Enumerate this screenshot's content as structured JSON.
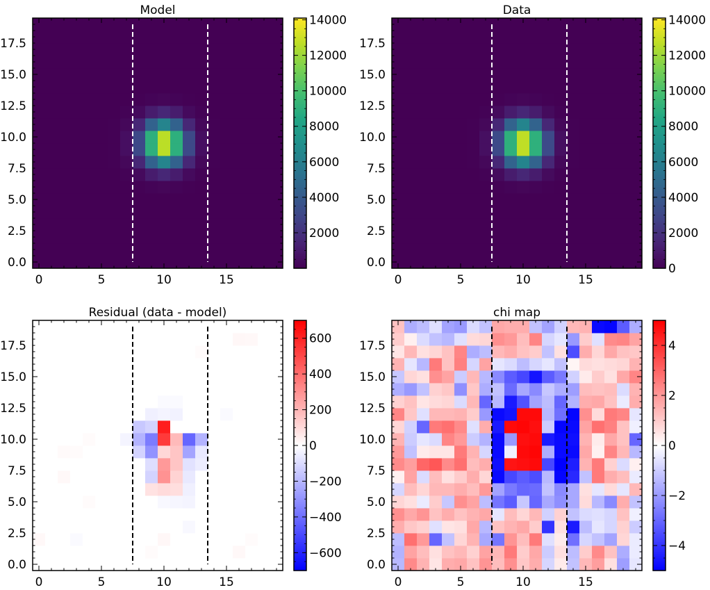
{
  "chart_data": [
    {
      "type": "heatmap",
      "title": "Model",
      "colormap": "viridis",
      "xlim": [
        -0.5,
        19.5
      ],
      "ylim": [
        -0.5,
        19.5
      ],
      "x_ticks": [
        "0",
        "5",
        "10",
        "15"
      ],
      "y_ticks": [
        "0.0",
        "2.5",
        "5.0",
        "7.5",
        "10.0",
        "12.5",
        "15.0",
        "17.5"
      ],
      "colorbar": {
        "range": [
          0,
          14100
        ],
        "ticks": [
          "2000",
          "4000",
          "6000",
          "8000",
          "10000",
          "12000",
          "14000"
        ]
      },
      "vlines": {
        "x": [
          7.5,
          13.5
        ],
        "color": "#ffffff"
      },
      "source": {
        "kind": "gaussian",
        "center_x": 10,
        "center_y": 9.5,
        "sigma_x": 1.2,
        "sigma_y": 1.2,
        "peak": 13800
      }
    },
    {
      "type": "heatmap",
      "title": "Data",
      "colormap": "viridis",
      "xlim": [
        -0.5,
        19.5
      ],
      "ylim": [
        -0.5,
        19.5
      ],
      "x_ticks": [
        "0",
        "5",
        "10",
        "15"
      ],
      "y_ticks": [
        "0.0",
        "2.5",
        "5.0",
        "7.5",
        "10.0",
        "12.5",
        "15.0",
        "17.5"
      ],
      "colorbar": {
        "range": [
          0,
          14100
        ],
        "ticks": [
          "0",
          "2000",
          "4000",
          "6000",
          "8000",
          "10000",
          "12000",
          "14000"
        ]
      },
      "vlines": {
        "x": [
          7.5,
          13.5
        ],
        "color": "#ffffff"
      },
      "source": {
        "kind": "gaussian",
        "center_x": 10,
        "center_y": 9.5,
        "sigma_x": 1.2,
        "sigma_y": 1.2,
        "peak": 13900
      }
    },
    {
      "type": "heatmap",
      "title": "Residual (data - model)",
      "colormap": "bwr",
      "xlim": [
        -0.5,
        19.5
      ],
      "ylim": [
        -0.5,
        19.5
      ],
      "x_ticks": [
        "0",
        "5",
        "10",
        "15"
      ],
      "y_ticks": [
        "0.0",
        "2.5",
        "5.0",
        "7.5",
        "10.0",
        "12.5",
        "15.0",
        "17.5"
      ],
      "colorbar": {
        "range": [
          -700,
          700
        ],
        "ticks": [
          "−600",
          "−400",
          "−200",
          "0",
          "200",
          "400",
          "600"
        ]
      },
      "vlines": {
        "x": [
          7.5,
          13.5
        ],
        "color": "#000000"
      },
      "background": 0,
      "cells": [
        [
          10,
          11,
          620
        ],
        [
          10,
          10,
          540
        ],
        [
          10,
          9,
          110
        ],
        [
          11,
          9,
          160
        ],
        [
          11,
          10,
          190
        ],
        [
          12,
          10,
          -420
        ],
        [
          12,
          9,
          -250
        ],
        [
          13,
          10,
          -210
        ],
        [
          9,
          10,
          -360
        ],
        [
          9,
          9,
          -300
        ],
        [
          9,
          11,
          -120
        ],
        [
          8,
          10,
          -210
        ],
        [
          8,
          11,
          -150
        ],
        [
          8,
          9,
          -120
        ],
        [
          7,
          10,
          -30
        ],
        [
          10,
          7,
          300
        ],
        [
          10,
          8,
          280
        ],
        [
          11,
          8,
          160
        ],
        [
          11,
          7,
          120
        ],
        [
          9,
          8,
          -90
        ],
        [
          9,
          7,
          -120
        ],
        [
          10,
          6,
          100
        ],
        [
          9,
          6,
          80
        ],
        [
          11,
          6,
          90
        ],
        [
          12,
          8,
          -80
        ],
        [
          12,
          7,
          -60
        ],
        [
          12,
          6,
          -40
        ],
        [
          13,
          8,
          -50
        ],
        [
          13,
          9,
          -60
        ],
        [
          9,
          12,
          -40
        ],
        [
          10,
          12,
          -30
        ],
        [
          11,
          12,
          -35
        ],
        [
          10,
          5,
          -20
        ],
        [
          11,
          5,
          -25
        ],
        [
          12,
          5,
          -30
        ],
        [
          12,
          3,
          -20
        ],
        [
          10,
          13,
          -15
        ],
        [
          11,
          13,
          -15
        ],
        [
          2,
          9,
          15
        ],
        [
          3,
          9,
          12
        ],
        [
          4,
          10,
          10
        ],
        [
          2,
          7,
          18
        ],
        [
          4,
          5,
          12
        ],
        [
          0,
          2,
          18
        ],
        [
          3,
          2,
          -15
        ],
        [
          10,
          2,
          22
        ],
        [
          9,
          1,
          12
        ],
        [
          16,
          1,
          18
        ],
        [
          17,
          2,
          12
        ],
        [
          15,
          12,
          -15
        ],
        [
          16,
          18,
          22
        ],
        [
          17,
          18,
          18
        ],
        [
          13,
          17,
          12
        ]
      ]
    },
    {
      "type": "heatmap",
      "title": "chi map",
      "colormap": "bwr",
      "xlim": [
        -0.5,
        19.5
      ],
      "ylim": [
        -0.5,
        19.5
      ],
      "x_ticks": [
        "0",
        "5",
        "10",
        "15"
      ],
      "y_ticks": [
        "0.0",
        "2.5",
        "5.0",
        "7.5",
        "10.0",
        "12.5",
        "15.0",
        "17.5"
      ],
      "colorbar": {
        "range": [
          -5,
          5
        ],
        "ticks": [
          "−4",
          "−2",
          "0",
          "2",
          "4"
        ]
      },
      "vlines": {
        "x": [
          7.5,
          13.5
        ],
        "color": "#000000"
      },
      "values": [
        [
          -1.4,
          2.3,
          1.5,
          0.5,
          1.6,
          1.7,
          1.2,
          2.1,
          1.3,
          2.2,
          1.1,
          1.6,
          -0.8,
          0.4,
          -1.2,
          1.4,
          1.9,
          0.6,
          -1.9,
          -0.5
        ],
        [
          -1.5,
          1.8,
          1.3,
          0.6,
          1.2,
          1.4,
          0.9,
          1.8,
          1.4,
          2.6,
          1.0,
          1.7,
          -1.0,
          0.6,
          -1.3,
          1.0,
          2.3,
          1.2,
          -1.6,
          -0.4
        ],
        [
          -1.3,
          2.8,
          2.0,
          -3.0,
          -1.2,
          0.8,
          1.5,
          -1.7,
          -2.7,
          2.1,
          1.3,
          2.6,
          -0.6,
          0.4,
          -2.8,
          -0.8,
          -1.2,
          -1.8,
          0.8,
          -0.4
        ],
        [
          1.6,
          1.1,
          0.9,
          -0.6,
          0.5,
          0.6,
          1.7,
          -1.4,
          1.2,
          1.5,
          1.7,
          1.0,
          -4.0,
          0.6,
          -4.5,
          -1.3,
          -0.5,
          -0.8,
          0.9,
          -1.0
        ],
        [
          2.2,
          1.7,
          2.1,
          1.2,
          1.6,
          1.2,
          1.5,
          1.7,
          -0.5,
          1.3,
          0.8,
          1.4,
          -0.9,
          0.9,
          -1.2,
          -0.7,
          -0.6,
          -0.8,
          1.2,
          -0.3
        ],
        [
          0.8,
          0.6,
          -0.4,
          1.0,
          -1.1,
          2.2,
          1.8,
          -1.3,
          -2.7,
          -3.2,
          -1.1,
          -3.0,
          -1.7,
          -2.2,
          -1.7,
          0.7,
          -1.4,
          -2.3,
          1.6,
          -1.2
        ],
        [
          -0.8,
          1.3,
          0.8,
          1.4,
          1.4,
          1.6,
          1.3,
          2.0,
          -1.8,
          -2.6,
          -3.0,
          -2.9,
          -1.2,
          -2.3,
          -1.7,
          0.6,
          -0.5,
          0.7,
          -0.5,
          1.4
        ],
        [
          0.3,
          1.8,
          -0.7,
          1.3,
          0.6,
          1.0,
          1.6,
          0.8,
          -4.8,
          -3.6,
          -3.2,
          -3.5,
          -1.4,
          -4.9,
          -4.2,
          -1.2,
          2.6,
          1.6,
          1.3,
          -0.4
        ],
        [
          2.3,
          1.9,
          3.0,
          3.3,
          2.3,
          2.8,
          1.3,
          1.6,
          -4.7,
          4.6,
          4.7,
          4.8,
          -3.6,
          -5.0,
          -4.4,
          1.5,
          2.6,
          0.9,
          -0.7,
          0.3
        ],
        [
          2.0,
          -1.2,
          0.4,
          0.5,
          0.5,
          2.6,
          1.5,
          -0.8,
          -4.8,
          -0.3,
          4.8,
          4.9,
          -1.6,
          -4.8,
          -4.8,
          1.7,
          0.3,
          2.4,
          1.4,
          -1.4
        ],
        [
          1.5,
          -1.0,
          -0.5,
          -0.7,
          2.4,
          2.0,
          -1.0,
          -1.5,
          -4.8,
          -2.0,
          4.7,
          4.8,
          -4.5,
          -4.8,
          -4.7,
          1.5,
          0.4,
          1.7,
          1.2,
          -3.0
        ],
        [
          0.8,
          -0.9,
          -3.0,
          2.6,
          2.8,
          2.3,
          -0.6,
          1.6,
          -4.5,
          4.8,
          4.9,
          4.7,
          -1.0,
          -4.9,
          -4.8,
          1.8,
          2.8,
          2.5,
          1.2,
          -0.3
        ],
        [
          2.4,
          1.1,
          -0.6,
          1.4,
          1.4,
          1.5,
          1.0,
          -2.0,
          -4.8,
          -4.6,
          4.8,
          4.8,
          -1.4,
          -2.8,
          -4.9,
          2.2,
          0.7,
          2.6,
          2.4,
          -0.5
        ],
        [
          0.9,
          1.2,
          0.5,
          0.7,
          0.8,
          -0.7,
          1.4,
          -3.0,
          -1.4,
          -4.5,
          -3.4,
          -1.8,
          -1.3,
          -3.0,
          -1.5,
          1.6,
          1.7,
          1.2,
          -0.4,
          1.6
        ],
        [
          -1.6,
          -2.0,
          -1.2,
          0.9,
          1.1,
          -2.2,
          1.1,
          -1.6,
          -1.2,
          -2.9,
          -1.7,
          -2.3,
          -1.1,
          -1.6,
          -1.9,
          1.3,
          1.2,
          1.3,
          -0.7,
          1.5
        ],
        [
          -1.1,
          0.8,
          0.6,
          2.2,
          1.8,
          -1.0,
          1.4,
          -1.4,
          -2.3,
          -3.2,
          -3.6,
          -4.6,
          -3.2,
          -2.6,
          -0.9,
          0.4,
          1.0,
          0.6,
          1.7,
          2.4
        ],
        [
          1.5,
          -0.5,
          -1.4,
          2.6,
          1.2,
          2.5,
          -0.8,
          1.8,
          -0.5,
          -0.7,
          -1.3,
          -0.8,
          -0.5,
          -1.2,
          0.2,
          0.7,
          0.6,
          0.7,
          0.8,
          1.5
        ],
        [
          0.5,
          1.4,
          0.6,
          0.8,
          1.2,
          2.4,
          -1.6,
          -1.3,
          1.4,
          1.6,
          1.2,
          1.0,
          -1.2,
          0.6,
          -3.5,
          1.6,
          0.8,
          1.7,
          1.2,
          1.1
        ],
        [
          1.0,
          0.3,
          -0.7,
          -1.2,
          -1.4,
          -0.6,
          0.7,
          0.8,
          2.2,
          2.0,
          1.3,
          2.4,
          -0.8,
          -0.5,
          -2.0,
          1.0,
          -0.6,
          2.3,
          2.4,
          1.8
        ],
        [
          1.2,
          -1.6,
          -1.3,
          -0.6,
          -1.8,
          -2.0,
          -0.7,
          -1.2,
          1.7,
          1.6,
          1.6,
          -1.2,
          -1.8,
          -0.9,
          1.4,
          1.5,
          -4.8,
          -4.9,
          -3.2,
          -1.6
        ]
      ]
    }
  ]
}
